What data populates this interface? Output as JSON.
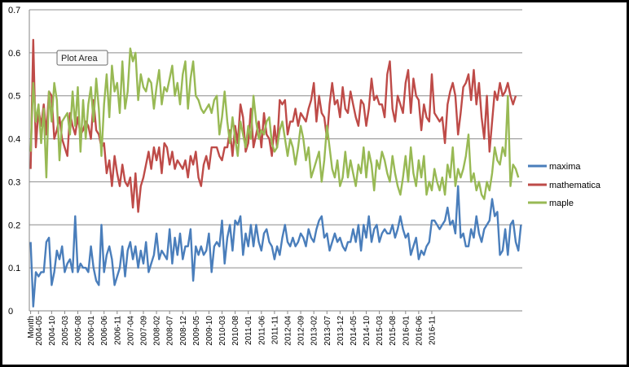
{
  "chart_data": {
    "type": "line",
    "title": "",
    "xlabel": "",
    "ylabel": "",
    "ylim": [
      0,
      0.7
    ],
    "yticks": [
      "0",
      "0.1",
      "0.2",
      "0.3",
      "0.4",
      "0.5",
      "0.6",
      "0.7"
    ],
    "grid": true,
    "legend_position": "right",
    "tooltip": "Plot Area",
    "x_start": "2004-02",
    "x_first_label": "Month",
    "x_labels": [
      "2004-05",
      "2004-10",
      "2005-03",
      "2005-08",
      "2006-01",
      "2006-06",
      "2006-11",
      "2007-04",
      "2007-09",
      "2008-02",
      "2008-07",
      "2008-12",
      "2009-05",
      "2009-10",
      "2010-03",
      "2010-08",
      "2011-01",
      "2011-06",
      "2011-11",
      "2012-04",
      "2012-09",
      "2013-02",
      "2013-07",
      "2013-12",
      "2014-05",
      "2014-10",
      "2015-03",
      "2015-08",
      "2016-01",
      "2016-06",
      "2016-11"
    ],
    "series": [
      {
        "name": "maxima",
        "color": "#4a7ebb",
        "values": [
          0.16,
          0.01,
          0.09,
          0.08,
          0.09,
          0.09,
          0.16,
          0.17,
          0.06,
          0.09,
          0.14,
          0.12,
          0.15,
          0.09,
          0.11,
          0.12,
          0.09,
          0.22,
          0.09,
          0.11,
          0.1,
          0.1,
          0.09,
          0.15,
          0.1,
          0.07,
          0.06,
          0.2,
          0.09,
          0.13,
          0.15,
          0.12,
          0.06,
          0.08,
          0.1,
          0.15,
          0.08,
          0.14,
          0.16,
          0.12,
          0.15,
          0.1,
          0.14,
          0.11,
          0.16,
          0.09,
          0.11,
          0.13,
          0.18,
          0.12,
          0.14,
          0.13,
          0.12,
          0.19,
          0.11,
          0.17,
          0.13,
          0.18,
          0.12,
          0.15,
          0.15,
          0.19,
          0.07,
          0.15,
          0.13,
          0.15,
          0.13,
          0.14,
          0.18,
          0.09,
          0.15,
          0.16,
          0.15,
          0.21,
          0.11,
          0.17,
          0.2,
          0.14,
          0.21,
          0.2,
          0.22,
          0.13,
          0.18,
          0.15,
          0.2,
          0.15,
          0.2,
          0.16,
          0.14,
          0.18,
          0.19,
          0.16,
          0.15,
          0.12,
          0.15,
          0.13,
          0.17,
          0.2,
          0.16,
          0.15,
          0.17,
          0.15,
          0.16,
          0.18,
          0.17,
          0.15,
          0.19,
          0.17,
          0.16,
          0.19,
          0.21,
          0.22,
          0.17,
          0.18,
          0.14,
          0.16,
          0.18,
          0.16,
          0.17,
          0.15,
          0.14,
          0.16,
          0.16,
          0.19,
          0.16,
          0.2,
          0.14,
          0.2,
          0.17,
          0.22,
          0.16,
          0.19,
          0.2,
          0.16,
          0.18,
          0.19,
          0.18,
          0.18,
          0.2,
          0.17,
          0.19,
          0.22,
          0.19,
          0.17,
          0.18,
          0.13,
          0.15,
          0.17,
          0.12,
          0.14,
          0.13,
          0.15,
          0.16,
          0.21,
          0.21,
          0.2,
          0.19,
          0.2,
          0.21,
          0.24,
          0.2,
          0.21,
          0.18,
          0.29,
          0.17,
          0.18,
          0.15,
          0.15,
          0.19,
          0.17,
          0.22,
          0.18,
          0.16,
          0.19,
          0.2,
          0.21,
          0.26,
          0.22,
          0.23,
          0.13,
          0.14,
          0.19,
          0.13,
          0.2,
          0.21,
          0.16,
          0.14,
          0.2
        ]
      },
      {
        "name": "mathematica",
        "color": "#be4b48",
        "values": [
          0.33,
          0.63,
          0.38,
          0.47,
          0.43,
          0.48,
          0.41,
          0.51,
          0.5,
          0.4,
          0.42,
          0.45,
          0.4,
          0.38,
          0.36,
          0.46,
          0.43,
          0.41,
          0.45,
          0.41,
          0.42,
          0.44,
          0.43,
          0.4,
          0.49,
          0.42,
          0.41,
          0.38,
          0.39,
          0.32,
          0.35,
          0.29,
          0.36,
          0.32,
          0.29,
          0.34,
          0.3,
          0.29,
          0.31,
          0.24,
          0.32,
          0.23,
          0.29,
          0.31,
          0.34,
          0.37,
          0.33,
          0.38,
          0.35,
          0.38,
          0.32,
          0.39,
          0.38,
          0.34,
          0.37,
          0.33,
          0.35,
          0.34,
          0.33,
          0.35,
          0.31,
          0.36,
          0.34,
          0.37,
          0.31,
          0.29,
          0.34,
          0.36,
          0.33,
          0.38,
          0.38,
          0.38,
          0.36,
          0.35,
          0.38,
          0.38,
          0.42,
          0.36,
          0.43,
          0.39,
          0.48,
          0.45,
          0.37,
          0.39,
          0.47,
          0.38,
          0.41,
          0.44,
          0.38,
          0.46,
          0.41,
          0.4,
          0.36,
          0.43,
          0.38,
          0.49,
          0.48,
          0.49,
          0.41,
          0.44,
          0.44,
          0.47,
          0.43,
          0.46,
          0.45,
          0.44,
          0.47,
          0.49,
          0.53,
          0.44,
          0.5,
          0.46,
          0.45,
          0.4,
          0.48,
          0.53,
          0.48,
          0.49,
          0.45,
          0.52,
          0.47,
          0.46,
          0.51,
          0.48,
          0.45,
          0.43,
          0.49,
          0.48,
          0.43,
          0.47,
          0.54,
          0.49,
          0.5,
          0.48,
          0.48,
          0.45,
          0.55,
          0.58,
          0.47,
          0.44,
          0.5,
          0.48,
          0.46,
          0.53,
          0.56,
          0.46,
          0.54,
          0.5,
          0.49,
          0.42,
          0.48,
          0.45,
          0.44,
          0.55,
          0.46,
          0.45,
          0.44,
          0.45,
          0.39,
          0.48,
          0.51,
          0.53,
          0.5,
          0.41,
          0.46,
          0.52,
          0.53,
          0.55,
          0.49,
          0.56,
          0.48,
          0.53,
          0.45,
          0.4,
          0.5,
          0.37,
          0.44,
          0.51,
          0.49,
          0.53,
          0.5,
          0.51,
          0.53,
          0.5,
          0.48,
          0.5
        ]
      },
      {
        "name": "maple",
        "color": "#98b954",
        "values": [
          0.37,
          0.53,
          0.44,
          0.48,
          0.39,
          0.47,
          0.31,
          0.51,
          0.44,
          0.53,
          0.49,
          0.35,
          0.44,
          0.45,
          0.46,
          0.41,
          0.51,
          0.43,
          0.52,
          0.37,
          0.49,
          0.4,
          0.48,
          0.52,
          0.44,
          0.54,
          0.47,
          0.36,
          0.48,
          0.55,
          0.45,
          0.57,
          0.51,
          0.53,
          0.46,
          0.58,
          0.47,
          0.51,
          0.61,
          0.58,
          0.6,
          0.49,
          0.55,
          0.52,
          0.51,
          0.54,
          0.53,
          0.47,
          0.52,
          0.56,
          0.48,
          0.52,
          0.51,
          0.54,
          0.57,
          0.5,
          0.53,
          0.48,
          0.55,
          0.58,
          0.47,
          0.54,
          0.58,
          0.5,
          0.49,
          0.47,
          0.46,
          0.47,
          0.48,
          0.46,
          0.49,
          0.5,
          0.41,
          0.45,
          0.51,
          0.44,
          0.39,
          0.45,
          0.4,
          0.36,
          0.44,
          0.41,
          0.38,
          0.43,
          0.4,
          0.5,
          0.44,
          0.4,
          0.42,
          0.41,
          0.44,
          0.45,
          0.39,
          0.37,
          0.38,
          0.42,
          0.44,
          0.4,
          0.36,
          0.4,
          0.38,
          0.34,
          0.38,
          0.43,
          0.4,
          0.35,
          0.38,
          0.31,
          0.33,
          0.35,
          0.37,
          0.3,
          0.35,
          0.43,
          0.38,
          0.33,
          0.31,
          0.35,
          0.29,
          0.31,
          0.37,
          0.31,
          0.35,
          0.32,
          0.29,
          0.34,
          0.32,
          0.38,
          0.31,
          0.37,
          0.34,
          0.28,
          0.35,
          0.33,
          0.37,
          0.35,
          0.32,
          0.3,
          0.36,
          0.32,
          0.29,
          0.27,
          0.31,
          0.36,
          0.3,
          0.38,
          0.32,
          0.29,
          0.35,
          0.31,
          0.36,
          0.27,
          0.3,
          0.28,
          0.33,
          0.3,
          0.28,
          0.31,
          0.27,
          0.34,
          0.31,
          0.38,
          0.29,
          0.33,
          0.31,
          0.33,
          0.36,
          0.41,
          0.3,
          0.32,
          0.28,
          0.3,
          0.27,
          0.26,
          0.3,
          0.28,
          0.32,
          0.38,
          0.35,
          0.34,
          0.38,
          0.36,
          0.5,
          0.29,
          0.34,
          0.33,
          0.31
        ]
      }
    ]
  }
}
